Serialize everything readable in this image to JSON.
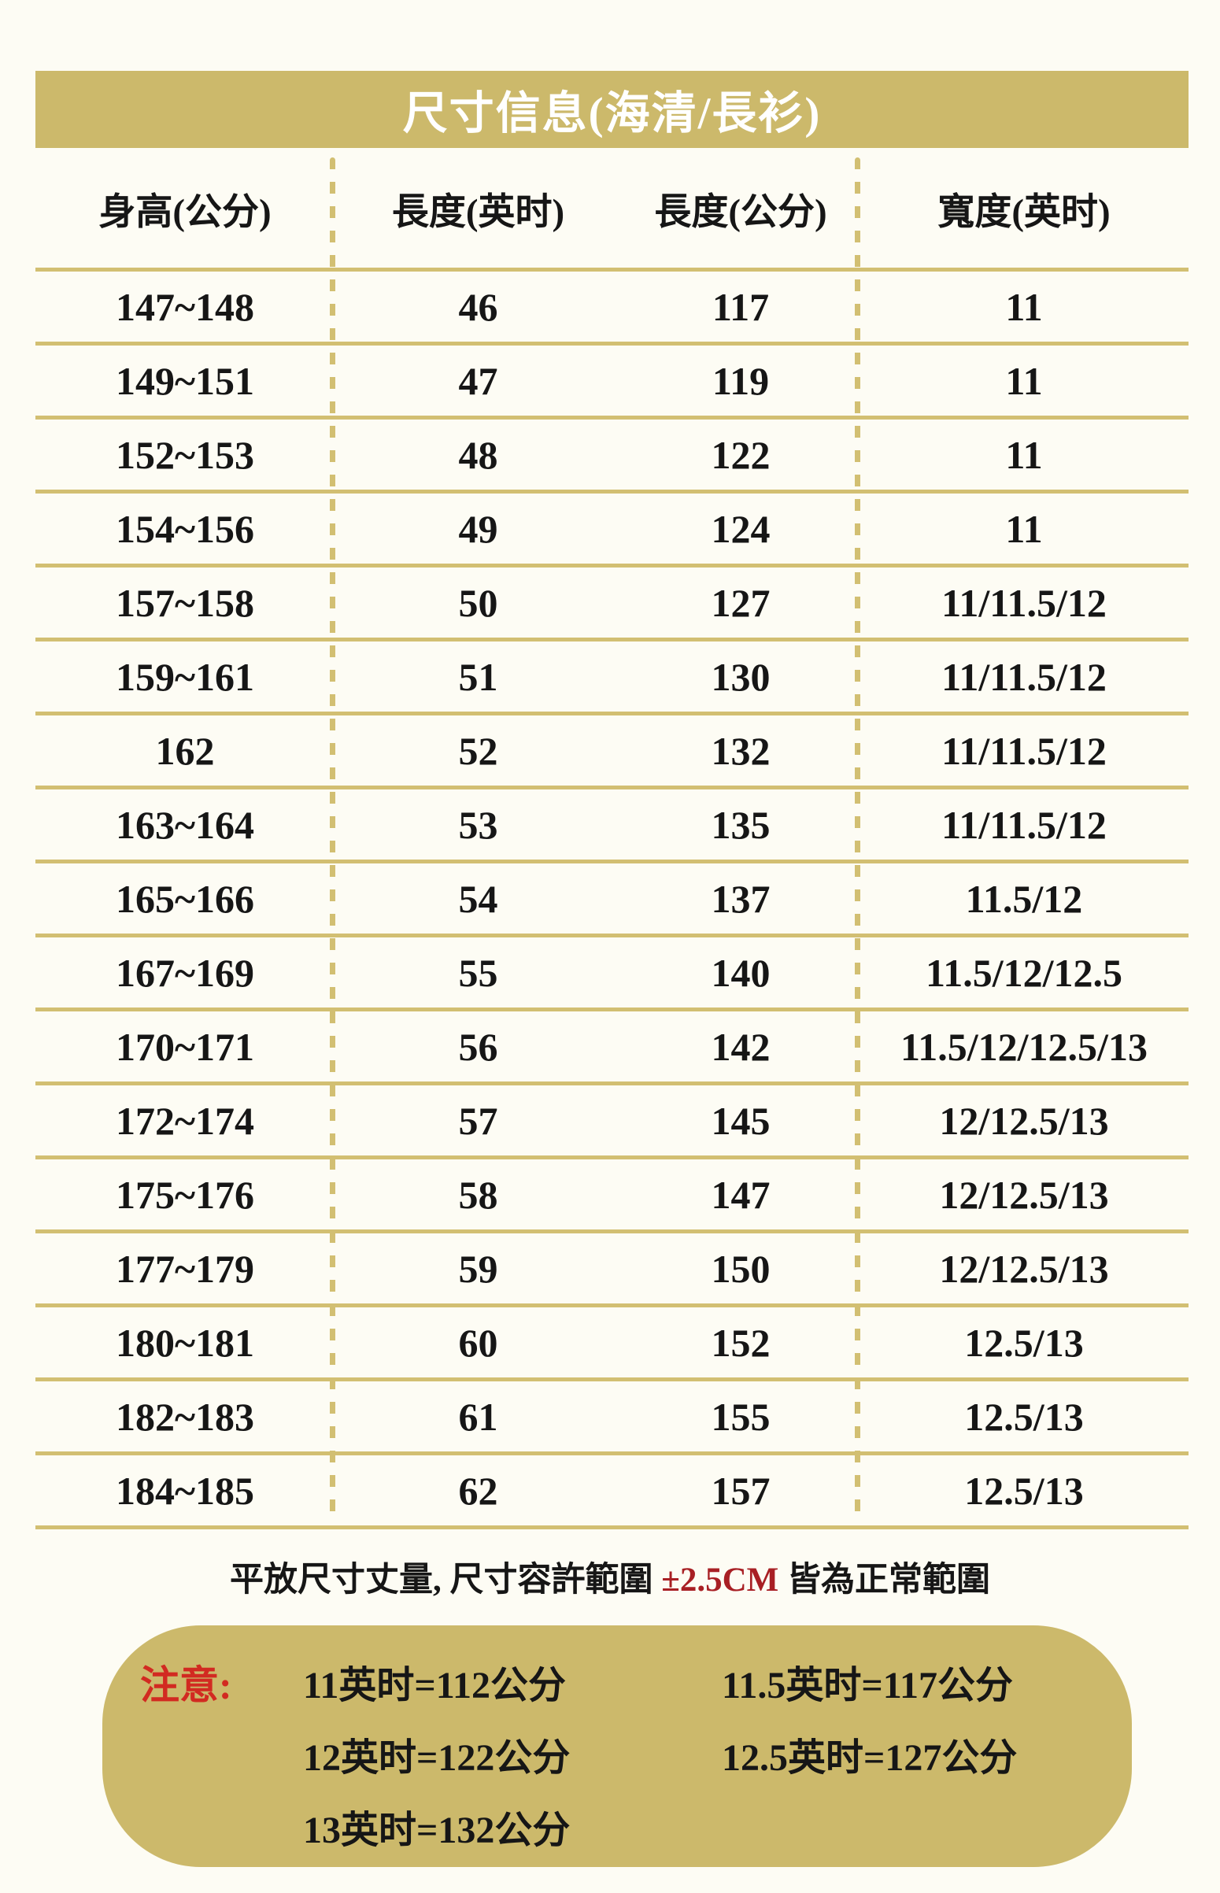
{
  "page": {
    "background": "#fdfcf4",
    "accent_gold": "#ccb96b",
    "red_bright": "#d22a21",
    "red_dark": "#a81f24"
  },
  "title": "尺寸信息(海清/長衫)",
  "table": {
    "headers": [
      "身高(公分)",
      "長度(英时)",
      "長度(公分)",
      "寬度(英时)"
    ],
    "rows": [
      [
        "147~148",
        "46",
        "117",
        "11"
      ],
      [
        "149~151",
        "47",
        "119",
        "11"
      ],
      [
        "152~153",
        "48",
        "122",
        "11"
      ],
      [
        "154~156",
        "49",
        "124",
        "11"
      ],
      [
        "157~158",
        "50",
        "127",
        "11/11.5/12"
      ],
      [
        "159~161",
        "51",
        "130",
        "11/11.5/12"
      ],
      [
        "162",
        "52",
        "132",
        "11/11.5/12"
      ],
      [
        "163~164",
        "53",
        "135",
        "11/11.5/12"
      ],
      [
        "165~166",
        "54",
        "137",
        "11.5/12"
      ],
      [
        "167~169",
        "55",
        "140",
        "11.5/12/12.5"
      ],
      [
        "170~171",
        "56",
        "142",
        "11.5/12/12.5/13"
      ],
      [
        "172~174",
        "57",
        "145",
        "12/12.5/13"
      ],
      [
        "175~176",
        "58",
        "147",
        "12/12.5/13"
      ],
      [
        "177~179",
        "59",
        "150",
        "12/12.5/13"
      ],
      [
        "180~181",
        "60",
        "152",
        "12.5/13"
      ],
      [
        "182~183",
        "61",
        "155",
        "12.5/13"
      ],
      [
        "184~185",
        "62",
        "157",
        "12.5/13"
      ]
    ]
  },
  "footnote": {
    "prefix": "平放尺寸丈量, 尺寸容許範圍 ",
    "highlight": "±2.5CM",
    "suffix": " 皆為正常範圍"
  },
  "note": {
    "label": "注意:",
    "lines": [
      [
        "11英时=112公分",
        "11.5英时=117公分"
      ],
      [
        "12英时=122公分",
        "12.5英时=127公分"
      ],
      [
        "13英时=132公分",
        ""
      ]
    ]
  }
}
